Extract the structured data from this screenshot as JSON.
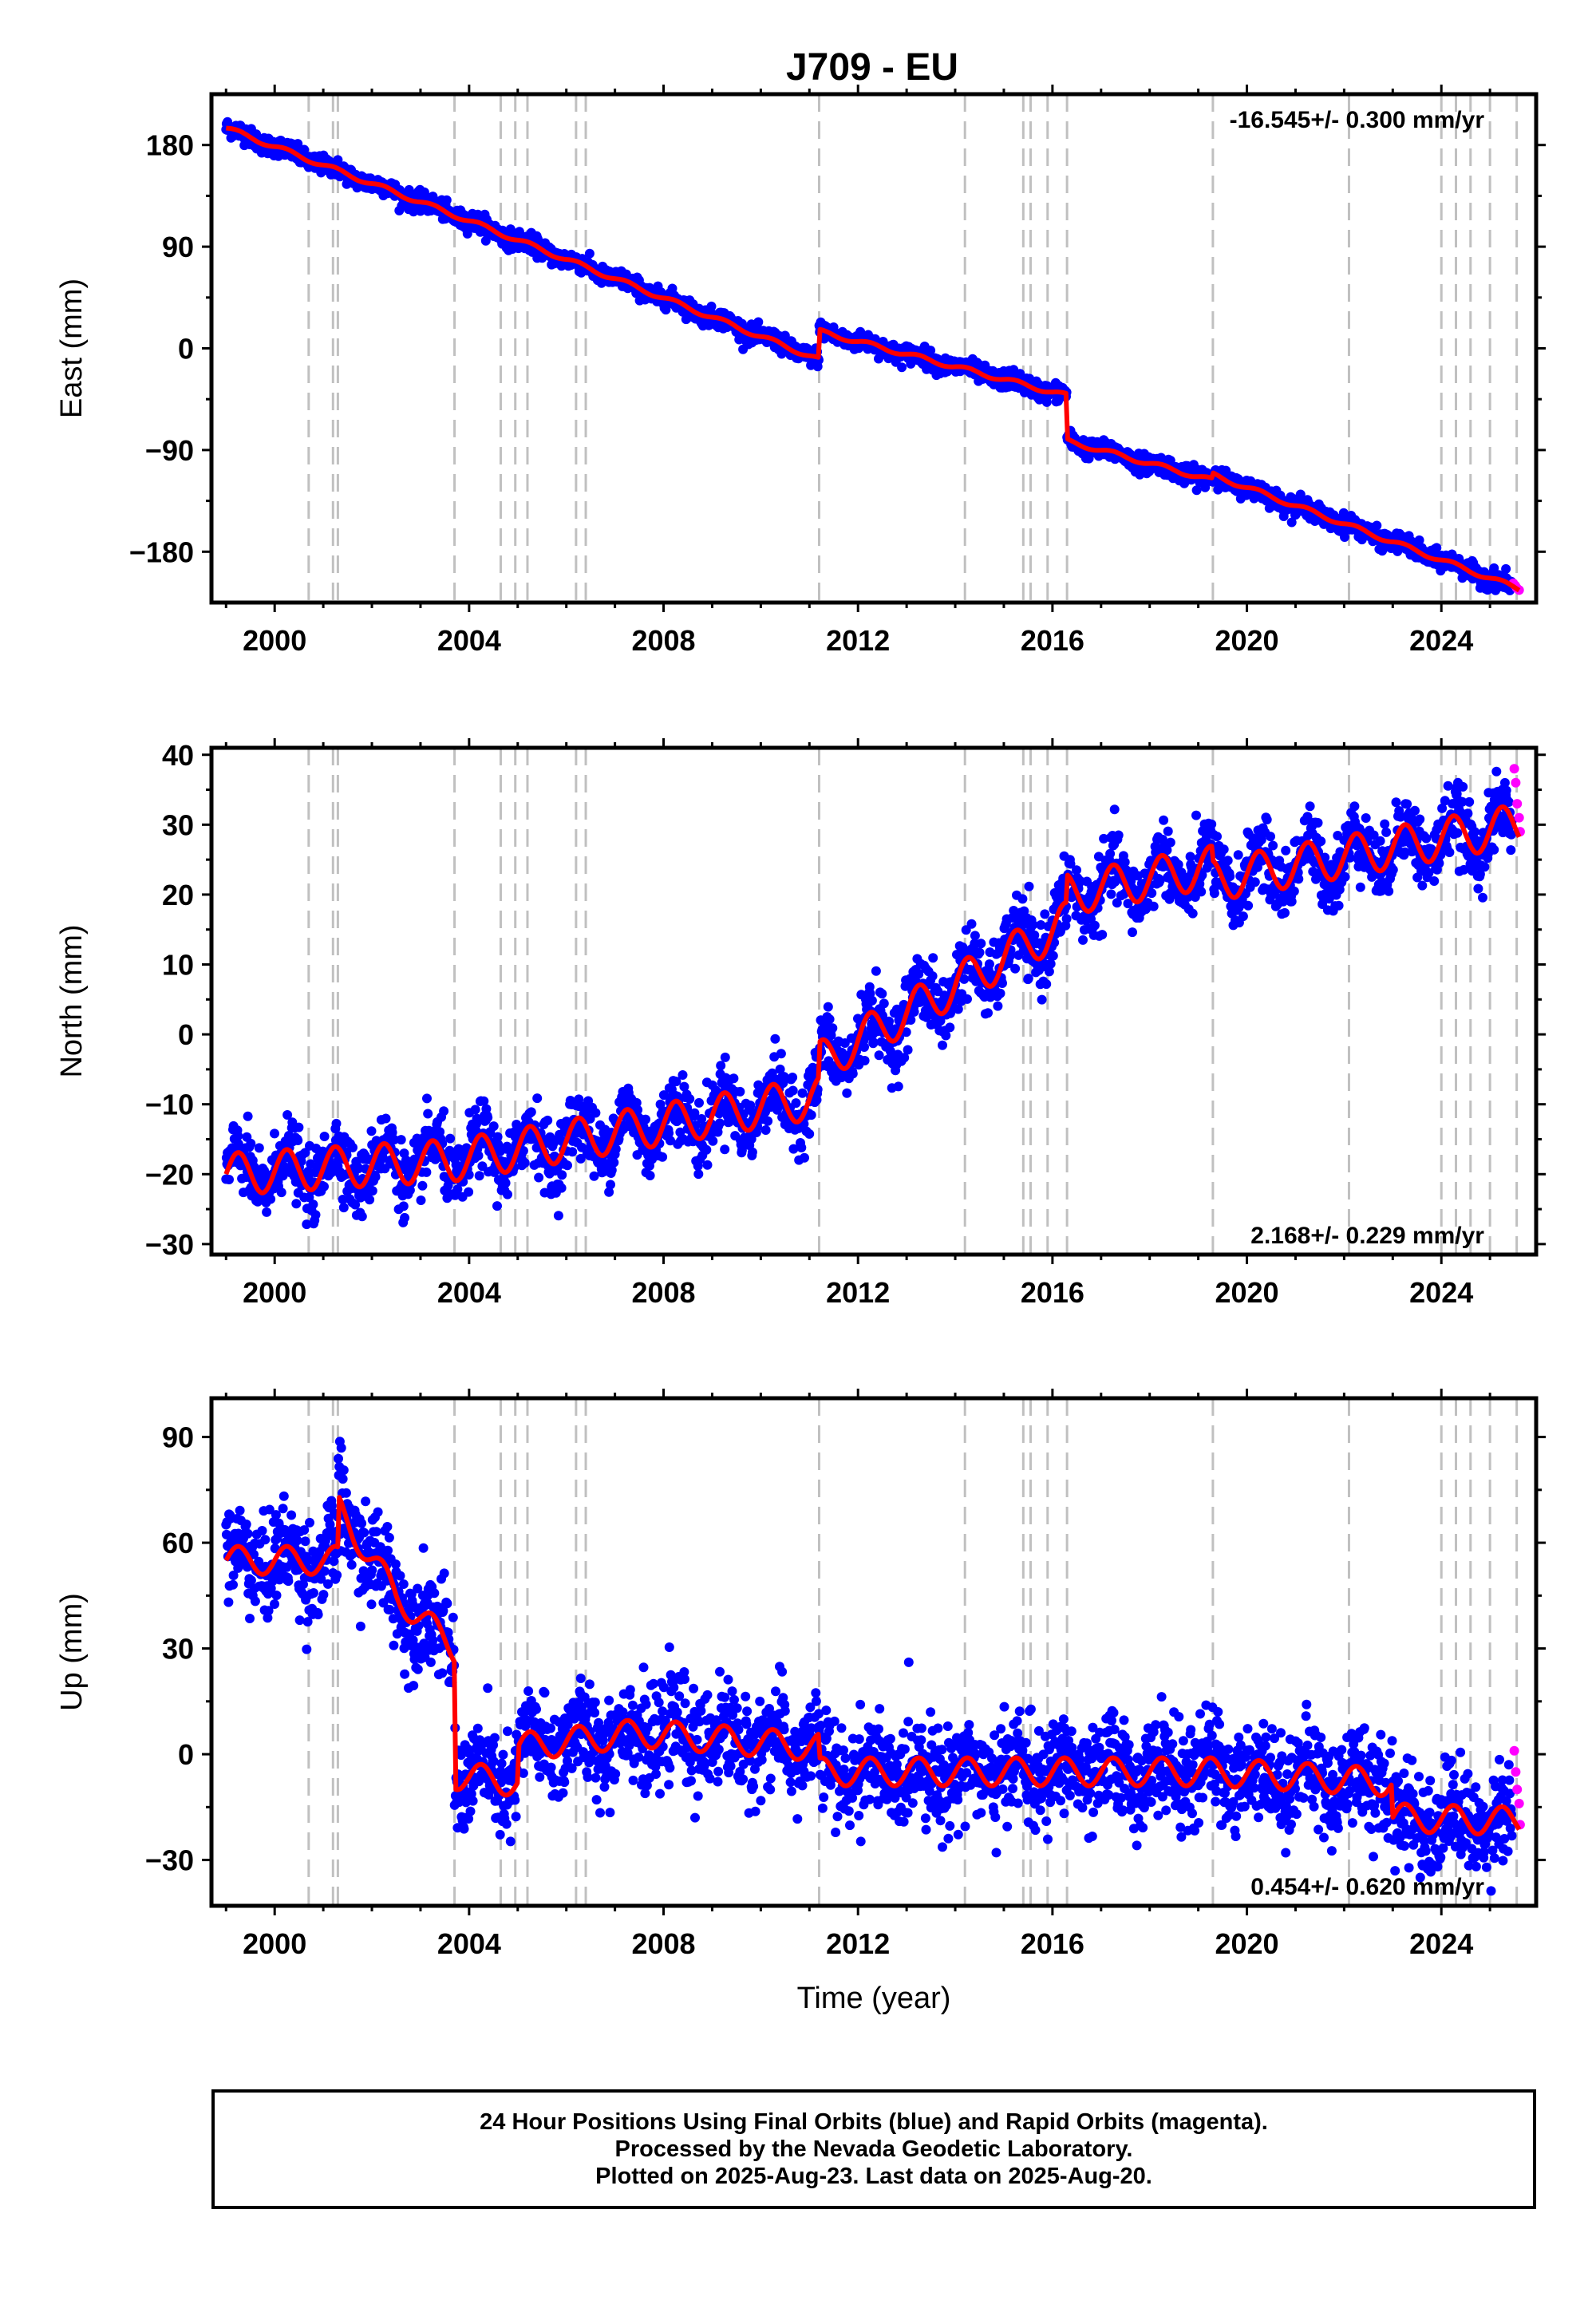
{
  "title": "J709 - EU",
  "colors": {
    "final_orbits": "#0000ff",
    "rapid_orbits": "#ff00ff",
    "model": "#ff0000",
    "event_lines": "#c0c0c0",
    "frame": "#000000"
  },
  "chart_data": [
    {
      "type": "scatter",
      "component": "East",
      "ylabel": "East (mm)",
      "xlabel": "",
      "rate_label": "-16.545+/- 0.300 mm/yr",
      "rate_position": "top-right",
      "xlim": [
        1998.7,
        2025.95
      ],
      "ylim": [
        -225,
        225
      ],
      "yticks": [
        180,
        90,
        0,
        -90,
        -180
      ],
      "ytick_labels": [
        "180",
        "90",
        "0",
        "−90",
        "−180"
      ],
      "xticks": [
        2000,
        2004,
        2008,
        2012,
        2016,
        2020,
        2024
      ],
      "xtick_labels": [
        "2000",
        "2004",
        "2008",
        "2012",
        "2016",
        "2020",
        "2024"
      ],
      "trend": [
        [
          1999.0,
          195
        ],
        [
          2003.7,
          118
        ],
        [
          2011.2,
          -10
        ],
        [
          2011.2,
          15
        ],
        [
          2016.3,
          -42
        ],
        [
          2016.3,
          -82
        ],
        [
          2019.3,
          -117
        ],
        [
          2019.3,
          -112
        ],
        [
          2025.6,
          -213
        ]
      ],
      "noise_sd": 4,
      "seasonal_amp": 2,
      "final_range": [
        1999.0,
        2025.45
      ],
      "rapid_points": [
        [
          2025.48,
          -208
        ],
        [
          2025.52,
          -210
        ],
        [
          2025.55,
          -212
        ],
        [
          2025.6,
          -214
        ]
      ]
    },
    {
      "type": "scatter",
      "component": "North",
      "ylabel": "North (mm)",
      "xlabel": "",
      "rate_label": "2.168+/- 0.229 mm/yr",
      "rate_position": "bottom-right",
      "xlim": [
        1998.7,
        2025.95
      ],
      "ylim": [
        -31.5,
        41
      ],
      "yticks": [
        40,
        30,
        20,
        10,
        0,
        -10,
        -20,
        -30
      ],
      "ytick_labels": [
        "40",
        "30",
        "20",
        "10",
        "0",
        "−10",
        "−20",
        "−30"
      ],
      "xticks": [
        2000,
        2004,
        2008,
        2012,
        2016,
        2020,
        2024
      ],
      "xtick_labels": [
        "2000",
        "2004",
        "2008",
        "2012",
        "2016",
        "2020",
        "2024"
      ],
      "trend": [
        [
          1999.0,
          -20
        ],
        [
          2003.7,
          -18
        ],
        [
          2011.2,
          -9
        ],
        [
          2011.2,
          -4
        ],
        [
          2016.3,
          16
        ],
        [
          2016.3,
          20
        ],
        [
          2019.3,
          24
        ],
        [
          2019.3,
          22
        ],
        [
          2025.6,
          30
        ]
      ],
      "noise_sd": 2.4,
      "seasonal_amp": 3,
      "final_range": [
        1999.0,
        2025.45
      ],
      "rapid_points": [
        [
          2025.5,
          38
        ],
        [
          2025.53,
          36
        ],
        [
          2025.56,
          33
        ],
        [
          2025.6,
          31
        ],
        [
          2025.62,
          29
        ]
      ]
    },
    {
      "type": "scatter",
      "component": "Up",
      "ylabel": "Up (mm)",
      "xlabel": "Time (year)",
      "rate_label": "0.454+/- 0.620 mm/yr",
      "rate_position": "bottom-right",
      "xlim": [
        1998.7,
        2025.95
      ],
      "ylim": [
        -43,
        101
      ],
      "yticks": [
        90,
        60,
        30,
        0,
        -30
      ],
      "ytick_labels": [
        "90",
        "60",
        "30",
        "0",
        "−30"
      ],
      "xticks": [
        2000,
        2004,
        2008,
        2012,
        2016,
        2020,
        2024
      ],
      "xtick_labels": [
        "2000",
        "2004",
        "2008",
        "2012",
        "2016",
        "2020",
        "2024"
      ],
      "trend": [
        [
          1999.0,
          55
        ],
        [
          2001.3,
          55
        ],
        [
          2001.3,
          70
        ],
        [
          2002.5,
          45
        ],
        [
          2003.7,
          30
        ],
        [
          2003.7,
          -6
        ],
        [
          2005.0,
          -8
        ],
        [
          2005.0,
          2
        ],
        [
          2007.5,
          6
        ],
        [
          2011.2,
          2
        ],
        [
          2011.2,
          -5
        ],
        [
          2016.3,
          -5
        ],
        [
          2019.3,
          -5
        ],
        [
          2023.0,
          -8
        ],
        [
          2023.0,
          -18
        ],
        [
          2025.6,
          -19
        ]
      ],
      "noise_sd": 7,
      "seasonal_amp": 4,
      "final_range": [
        1999.0,
        2025.45
      ],
      "rapid_points": [
        [
          2025.5,
          1
        ],
        [
          2025.53,
          -5
        ],
        [
          2025.56,
          -10
        ],
        [
          2025.6,
          -14
        ],
        [
          2025.62,
          -20
        ]
      ]
    }
  ],
  "event_lines": [
    2000.7,
    2001.2,
    2001.3,
    2003.7,
    2004.65,
    2004.95,
    2005.2,
    2006.2,
    2006.4,
    2011.2,
    2014.2,
    2015.4,
    2015.55,
    2015.9,
    2016.3,
    2019.3,
    2022.1,
    2024.0,
    2024.3,
    2024.6,
    2025.0,
    2025.55
  ],
  "footer": {
    "line1": "24 Hour Positions Using Final Orbits (blue) and Rapid Orbits (magenta).",
    "line2": "Processed by the Nevada Geodetic Laboratory.",
    "line3": "Plotted on 2025-Aug-23. Last data on 2025-Aug-20."
  }
}
